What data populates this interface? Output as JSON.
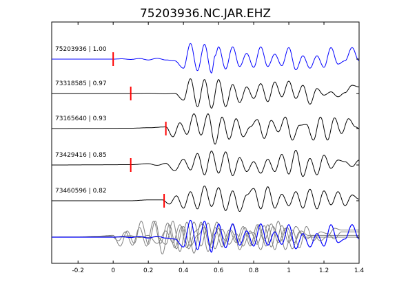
{
  "chart_data": {
    "type": "line",
    "title": "75203936.NC.JAR.EHZ",
    "xlabel": "",
    "ylabel": "",
    "xlim": [
      -0.35,
      1.4
    ],
    "xticks": [
      -0.2,
      0,
      0.2,
      0.4,
      0.6,
      0.8,
      1,
      1.2,
      1.4
    ],
    "xtick_labels": [
      "-0.2",
      "0",
      "0.2",
      "0.4",
      "0.6",
      "0.8",
      "1",
      "1.2",
      "1.4"
    ],
    "grid": false,
    "colors": {
      "master": "#0000ff",
      "trace": "#000000",
      "pick": "#ff0000",
      "overlay": "#808080"
    },
    "series": [
      {
        "label": "75203936 | 1.00",
        "pick_time": 0.0,
        "color": "#0000ff",
        "x": [
          -0.35,
          -0.1,
          0.0,
          0.05,
          0.1,
          0.15,
          0.2,
          0.25,
          0.3,
          0.35,
          0.4,
          0.44,
          0.48,
          0.52,
          0.56,
          0.58,
          0.6,
          0.64,
          0.68,
          0.72,
          0.76,
          0.8,
          0.84,
          0.88,
          0.92,
          0.96,
          1.0,
          1.04,
          1.08,
          1.12,
          1.16,
          1.2,
          1.24,
          1.28,
          1.32,
          1.36,
          1.4
        ],
        "y": [
          0,
          0,
          0,
          0.02,
          -0.02,
          0.04,
          -0.05,
          0.05,
          -0.05,
          -0.1,
          -0.55,
          0.95,
          -0.7,
          0.9,
          -0.85,
          0.2,
          0.75,
          -0.6,
          0.75,
          -0.45,
          0.35,
          -0.5,
          0.75,
          -0.45,
          0.3,
          -0.4,
          0.7,
          -0.65,
          0.2,
          -0.55,
          0.2,
          -0.5,
          0.7,
          -0.3,
          -0.1,
          0.7,
          -0.1
        ]
      },
      {
        "label": "73318585 | 0.97",
        "pick_time": 0.1,
        "color": "#000000",
        "x": [
          -0.35,
          0.1,
          0.2,
          0.3,
          0.35,
          0.4,
          0.44,
          0.48,
          0.52,
          0.56,
          0.6,
          0.64,
          0.68,
          0.72,
          0.76,
          0.8,
          0.84,
          0.88,
          0.92,
          0.96,
          1.0,
          1.04,
          1.08,
          1.12,
          1.16,
          1.2,
          1.24,
          1.28,
          1.32,
          1.36,
          1.4
        ],
        "y": [
          0,
          0,
          0.02,
          -0.02,
          0.02,
          -0.4,
          0.9,
          -0.8,
          0.85,
          -0.9,
          0.85,
          -0.8,
          0.55,
          -0.55,
          0.4,
          -0.3,
          0.6,
          -0.5,
          0.7,
          -0.2,
          0.75,
          -0.3,
          0.5,
          -0.65,
          0.3,
          -0.1,
          0.1,
          -0.2,
          0.05,
          0.5,
          0.4
        ]
      },
      {
        "label": "73165640 | 0.93",
        "pick_time": 0.3,
        "color": "#000000",
        "x": [
          -0.35,
          0.1,
          0.2,
          0.3,
          0.34,
          0.38,
          0.42,
          0.46,
          0.5,
          0.54,
          0.58,
          0.62,
          0.66,
          0.7,
          0.74,
          0.78,
          0.82,
          0.86,
          0.9,
          0.94,
          0.98,
          1.02,
          1.06,
          1.1,
          1.14,
          1.18,
          1.22,
          1.26,
          1.3,
          1.34,
          1.38,
          1.4
        ],
        "y": [
          0,
          0.02,
          0.05,
          0.1,
          -0.5,
          0.35,
          -0.35,
          0.9,
          -0.4,
          0.9,
          -0.95,
          0.7,
          -0.65,
          0.6,
          -0.5,
          0.1,
          0.55,
          -0.6,
          0.5,
          -0.2,
          0.7,
          -0.7,
          0.2,
          0.25,
          -0.7,
          0.7,
          -0.7,
          0.65,
          -0.3,
          0.6,
          0.1,
          0.0
        ]
      },
      {
        "label": "73429416 | 0.85",
        "pick_time": 0.1,
        "color": "#000000",
        "x": [
          -0.35,
          0.1,
          0.2,
          0.25,
          0.3,
          0.35,
          0.4,
          0.44,
          0.48,
          0.52,
          0.56,
          0.6,
          0.64,
          0.68,
          0.72,
          0.76,
          0.8,
          0.84,
          0.88,
          0.92,
          0.96,
          1.0,
          1.04,
          1.08,
          1.12,
          1.16,
          1.2,
          1.24,
          1.28,
          1.32,
          1.36,
          1.4
        ],
        "y": [
          0,
          0.02,
          0.08,
          -0.02,
          0.1,
          -0.35,
          0.35,
          -0.3,
          0.7,
          -0.6,
          0.85,
          -0.5,
          0.8,
          -0.65,
          0.45,
          -0.4,
          0.2,
          -0.5,
          0.35,
          -0.4,
          0.65,
          -0.55,
          0.9,
          -0.7,
          0.4,
          -0.6,
          0.6,
          -0.2,
          0.3,
          0.2,
          -0.1,
          0.3
        ]
      },
      {
        "label": "73460596 | 0.82",
        "pick_time": 0.29,
        "color": "#000000",
        "x": [
          -0.35,
          0.1,
          0.2,
          0.28,
          0.32,
          0.36,
          0.4,
          0.44,
          0.48,
          0.52,
          0.56,
          0.6,
          0.64,
          0.68,
          0.72,
          0.76,
          0.8,
          0.84,
          0.88,
          0.92,
          0.96,
          1.0,
          1.04,
          1.08,
          1.12,
          1.16,
          1.2,
          1.24,
          1.28,
          1.32,
          1.36,
          1.4
        ],
        "y": [
          0,
          0,
          0.05,
          0.05,
          -0.2,
          0.3,
          -0.45,
          0.55,
          -0.5,
          0.9,
          -0.35,
          0.8,
          -0.6,
          0.6,
          -0.65,
          0.35,
          0.75,
          -0.5,
          0.85,
          -0.45,
          0.4,
          -0.3,
          0.55,
          -0.45,
          0.7,
          -0.5,
          0.6,
          -0.25,
          0.55,
          -0.3,
          0.35,
          0.1
        ]
      }
    ]
  }
}
